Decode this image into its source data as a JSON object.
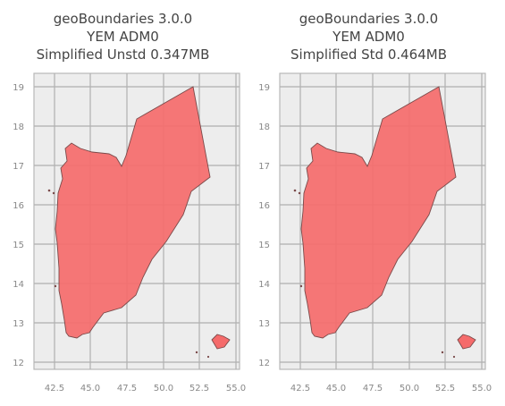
{
  "maps": [
    {
      "title_line1": "geoBoundaries 3.0.0",
      "title_line2": "YEM ADM0",
      "title_line3": "Simplified Unstd 0.347MB"
    },
    {
      "title_line1": "geoBoundaries 3.0.0",
      "title_line2": "YEM ADM0",
      "title_line3": "Simplified Std 0.464MB"
    }
  ],
  "x_tick_labels": [
    "42.5",
    "45.0",
    "47.5",
    "50.0",
    "52.5",
    "55.0"
  ],
  "y_tick_labels": [
    "12",
    "13",
    "14",
    "15",
    "16",
    "17",
    "18",
    "19"
  ],
  "colors": {
    "polygon_fill": "#f56b6b",
    "polygon_edge": "#7a4a4a",
    "plot_background": "#ededed",
    "grid": "#b0b0b0"
  }
}
